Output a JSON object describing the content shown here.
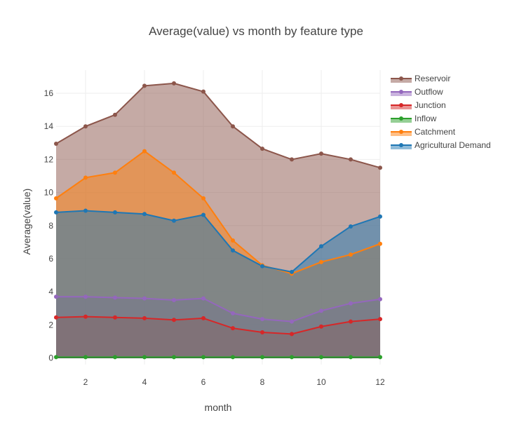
{
  "chart_data": {
    "type": "area",
    "title": "Average(value) vs month by feature type",
    "xlabel": "month",
    "ylabel": "Average(value)",
    "xlim": [
      1,
      12
    ],
    "ylim": [
      -0.4,
      17.4
    ],
    "xticks": [
      2,
      4,
      6,
      8,
      10,
      12
    ],
    "yticks": [
      0,
      2,
      4,
      6,
      8,
      10,
      12,
      14,
      16
    ],
    "grid": true,
    "legend_position": "right",
    "x": [
      1,
      2,
      3,
      4,
      5,
      6,
      7,
      8,
      9,
      10,
      11,
      12
    ],
    "series": [
      {
        "name": "Reservoir",
        "color": "#8c564b",
        "values": [
          12.95,
          14.0,
          14.7,
          16.45,
          16.6,
          16.1,
          14.0,
          12.65,
          12.0,
          12.35,
          12.0,
          11.5
        ]
      },
      {
        "name": "Outflow",
        "color": "#9467bd",
        "values": [
          3.7,
          3.7,
          3.65,
          3.6,
          3.5,
          3.6,
          2.7,
          2.35,
          2.2,
          2.85,
          3.3,
          3.55
        ]
      },
      {
        "name": "Junction",
        "color": "#d62728",
        "values": [
          2.45,
          2.5,
          2.45,
          2.4,
          2.3,
          2.4,
          1.8,
          1.55,
          1.45,
          1.9,
          2.2,
          2.35
        ]
      },
      {
        "name": "Inflow",
        "color": "#2ca02c",
        "values": [
          0.05,
          0.05,
          0.05,
          0.05,
          0.05,
          0.05,
          0.05,
          0.05,
          0.05,
          0.05,
          0.05,
          0.05
        ]
      },
      {
        "name": "Catchment",
        "color": "#ff7f0e",
        "values": [
          9.65,
          10.9,
          11.2,
          12.5,
          11.2,
          9.65,
          7.1,
          5.6,
          5.1,
          5.8,
          6.25,
          6.9
        ]
      },
      {
        "name": "Agricultural Demand",
        "color": "#1f77b4",
        "values": [
          8.8,
          8.9,
          8.8,
          8.7,
          8.3,
          8.65,
          6.5,
          5.55,
          5.2,
          6.75,
          7.95,
          8.55
        ]
      }
    ]
  }
}
